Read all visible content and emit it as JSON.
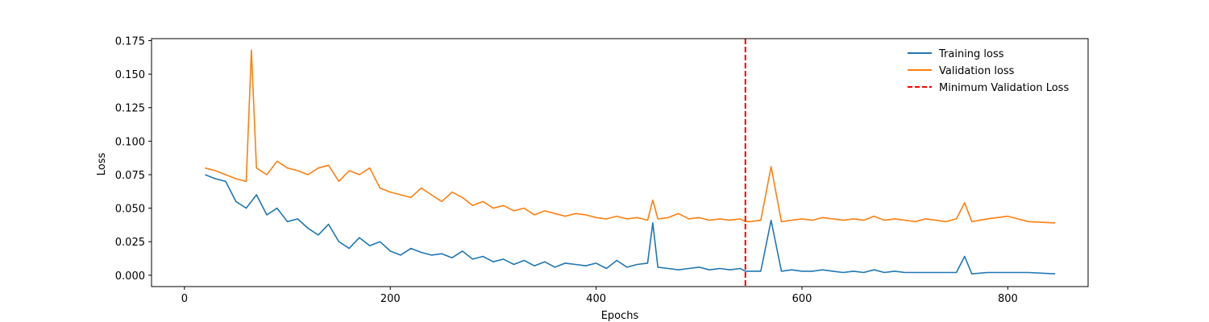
{
  "chart_data": {
    "type": "line",
    "title": "",
    "xlabel": "Epochs",
    "ylabel": "Loss",
    "xlim": [
      -32,
      878
    ],
    "ylim": [
      -0.0085,
      0.1765
    ],
    "xticks": [
      0,
      200,
      400,
      600,
      800
    ],
    "yticks": [
      0.0,
      0.025,
      0.05,
      0.075,
      0.1,
      0.125,
      0.15,
      0.175
    ],
    "xtick_labels": [
      "0",
      "200",
      "400",
      "600",
      "800"
    ],
    "ytick_labels": [
      "0.000",
      "0.025",
      "0.050",
      "0.075",
      "0.100",
      "0.125",
      "0.150",
      "0.175"
    ],
    "grid": false,
    "legend_position": "top-right",
    "series": [
      {
        "name": "Training loss",
        "color": "#1f77b4",
        "x": [
          20,
          30,
          40,
          50,
          60,
          70,
          80,
          90,
          100,
          110,
          120,
          130,
          140,
          150,
          160,
          170,
          180,
          190,
          200,
          210,
          220,
          230,
          240,
          250,
          260,
          270,
          280,
          290,
          300,
          310,
          320,
          330,
          340,
          350,
          360,
          370,
          380,
          390,
          400,
          410,
          420,
          430,
          440,
          450,
          455,
          460,
          470,
          480,
          490,
          500,
          510,
          520,
          530,
          540,
          545,
          550,
          560,
          570,
          580,
          590,
          600,
          610,
          620,
          630,
          640,
          650,
          660,
          670,
          680,
          690,
          700,
          710,
          720,
          730,
          740,
          750,
          758,
          765,
          780,
          800,
          820,
          846
        ],
        "y": [
          0.075,
          0.072,
          0.07,
          0.055,
          0.05,
          0.06,
          0.045,
          0.05,
          0.04,
          0.042,
          0.035,
          0.03,
          0.038,
          0.025,
          0.02,
          0.028,
          0.022,
          0.025,
          0.018,
          0.015,
          0.02,
          0.017,
          0.015,
          0.016,
          0.013,
          0.018,
          0.012,
          0.014,
          0.01,
          0.012,
          0.008,
          0.011,
          0.007,
          0.01,
          0.006,
          0.009,
          0.008,
          0.007,
          0.009,
          0.005,
          0.011,
          0.006,
          0.008,
          0.009,
          0.039,
          0.006,
          0.005,
          0.004,
          0.005,
          0.006,
          0.004,
          0.005,
          0.004,
          0.005,
          0.003,
          0.003,
          0.003,
          0.041,
          0.003,
          0.004,
          0.003,
          0.003,
          0.004,
          0.003,
          0.002,
          0.003,
          0.002,
          0.004,
          0.002,
          0.003,
          0.002,
          0.002,
          0.002,
          0.002,
          0.002,
          0.002,
          0.014,
          0.001,
          0.002,
          0.002,
          0.002,
          0.001
        ]
      },
      {
        "name": "Validation loss",
        "color": "#ff7f0e",
        "x": [
          20,
          30,
          40,
          50,
          60,
          65,
          70,
          80,
          90,
          100,
          110,
          120,
          130,
          140,
          150,
          160,
          170,
          180,
          190,
          200,
          210,
          220,
          230,
          240,
          250,
          260,
          270,
          280,
          290,
          300,
          310,
          320,
          330,
          340,
          350,
          360,
          370,
          380,
          390,
          400,
          410,
          420,
          430,
          440,
          450,
          455,
          460,
          470,
          480,
          490,
          500,
          510,
          520,
          530,
          540,
          545,
          550,
          560,
          570,
          580,
          590,
          600,
          610,
          620,
          630,
          640,
          650,
          660,
          670,
          680,
          690,
          700,
          710,
          720,
          730,
          740,
          750,
          758,
          765,
          780,
          800,
          820,
          846
        ],
        "y": [
          0.08,
          0.078,
          0.075,
          0.072,
          0.07,
          0.168,
          0.08,
          0.075,
          0.085,
          0.08,
          0.078,
          0.075,
          0.08,
          0.082,
          0.07,
          0.078,
          0.075,
          0.08,
          0.065,
          0.062,
          0.06,
          0.058,
          0.065,
          0.06,
          0.055,
          0.062,
          0.058,
          0.052,
          0.055,
          0.05,
          0.052,
          0.048,
          0.05,
          0.045,
          0.048,
          0.046,
          0.044,
          0.046,
          0.045,
          0.043,
          0.042,
          0.044,
          0.042,
          0.043,
          0.041,
          0.056,
          0.042,
          0.043,
          0.046,
          0.042,
          0.043,
          0.041,
          0.042,
          0.041,
          0.042,
          0.04,
          0.04,
          0.041,
          0.081,
          0.04,
          0.041,
          0.042,
          0.041,
          0.043,
          0.042,
          0.041,
          0.042,
          0.041,
          0.044,
          0.041,
          0.042,
          0.041,
          0.04,
          0.042,
          0.041,
          0.04,
          0.042,
          0.054,
          0.04,
          0.042,
          0.044,
          0.04,
          0.039
        ]
      }
    ],
    "vlines": [
      {
        "name": "Minimum Validation Loss",
        "x": 545,
        "color": "#ff0000",
        "style": "dashed"
      }
    ]
  }
}
